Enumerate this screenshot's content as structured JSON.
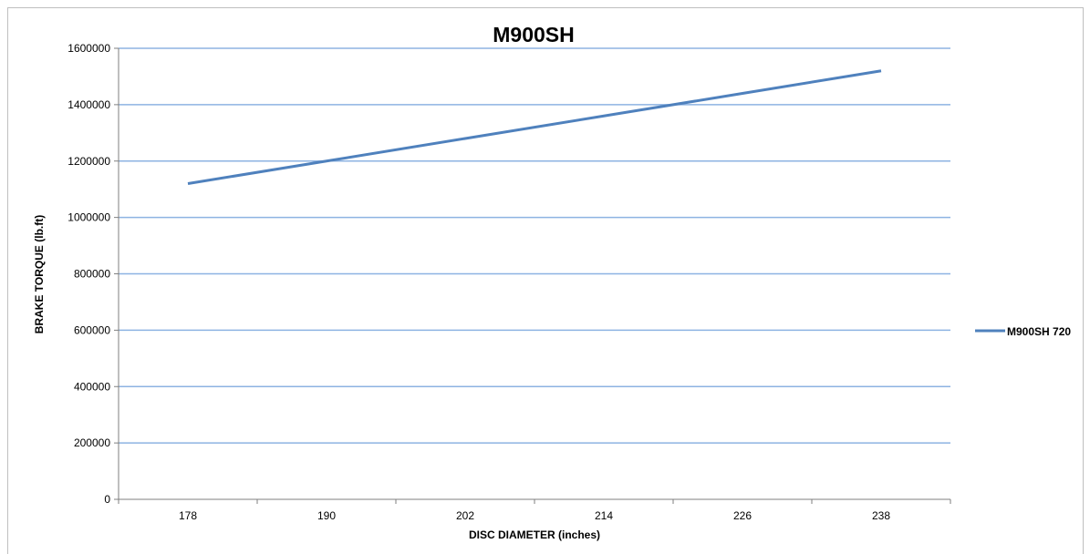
{
  "chart_data": {
    "type": "line",
    "title": "M900SH",
    "xlabel": "DISC DIAMETER (inches)",
    "ylabel": "BRAKE TORQUE (lb.ft)",
    "x": [
      178,
      190,
      202,
      214,
      226,
      238
    ],
    "x_tick_labels": [
      "178",
      "190",
      "202",
      "214",
      "226",
      "238"
    ],
    "y_tick_labels": [
      "0",
      "200000",
      "400000",
      "600000",
      "800000",
      "1000000",
      "1200000",
      "1400000",
      "1600000"
    ],
    "ylim": [
      0,
      1600000
    ],
    "grid": true,
    "legend_position": "right",
    "series": [
      {
        "name": "M900SH 720",
        "color": "#4f81bd",
        "values": [
          1120000,
          1200000,
          1280000,
          1360000,
          1440000,
          1520000
        ]
      }
    ]
  },
  "colors": {
    "gridline": "#8db3e2",
    "axis": "#7f7f7f",
    "series_line": "#4f81bd"
  }
}
